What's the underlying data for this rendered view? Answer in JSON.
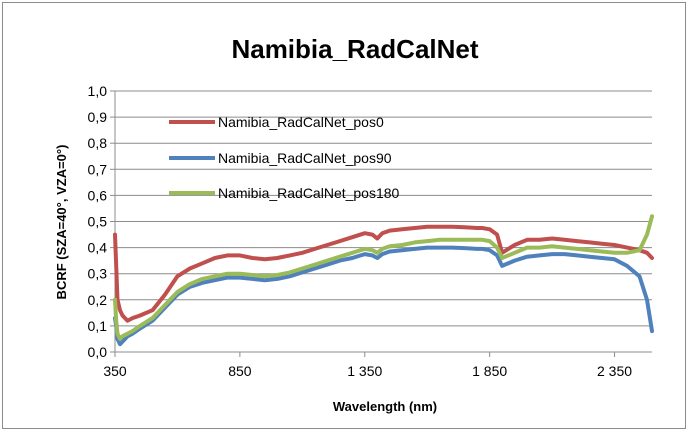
{
  "chart_data": {
    "type": "line",
    "title": "Namibia_RadCalNet",
    "xlabel": "Wavelength (nm)",
    "ylabel": "BCRF (SZA=40°, VZA=0°)",
    "xlim": [
      350,
      2500
    ],
    "ylim": [
      0,
      1.0
    ],
    "x_ticks": [
      350,
      850,
      1350,
      1850,
      2350
    ],
    "x_tick_labels": [
      "350",
      "850",
      "1 350",
      "1 850",
      "2 350"
    ],
    "y_ticks": [
      0,
      0.1,
      0.2,
      0.3,
      0.4,
      0.5,
      0.6,
      0.7,
      0.8,
      0.9,
      1.0
    ],
    "y_tick_labels": [
      "0,0",
      "0,1",
      "0,2",
      "0,3",
      "0,4",
      "0,5",
      "0,6",
      "0,7",
      "0,8",
      "0,9",
      "1,0"
    ],
    "grid": "horizontal",
    "legend_position": "top-left",
    "series": [
      {
        "name": "Namibia_RadCalNet_pos0",
        "color": "#c0504d",
        "x": [
          350,
          355,
          360,
          370,
          380,
          400,
          420,
          450,
          500,
          550,
          600,
          650,
          700,
          750,
          800,
          850,
          900,
          950,
          1000,
          1050,
          1100,
          1150,
          1200,
          1250,
          1300,
          1350,
          1380,
          1400,
          1420,
          1450,
          1500,
          1550,
          1600,
          1650,
          1700,
          1750,
          1800,
          1820,
          1850,
          1880,
          1900,
          1950,
          2000,
          2050,
          2100,
          2150,
          2200,
          2250,
          2300,
          2350,
          2400,
          2450,
          2480,
          2500
        ],
        "y": [
          0.45,
          0.33,
          0.2,
          0.16,
          0.14,
          0.12,
          0.13,
          0.14,
          0.16,
          0.22,
          0.29,
          0.32,
          0.34,
          0.36,
          0.37,
          0.37,
          0.36,
          0.355,
          0.36,
          0.37,
          0.38,
          0.395,
          0.41,
          0.425,
          0.44,
          0.455,
          0.45,
          0.435,
          0.455,
          0.465,
          0.47,
          0.475,
          0.48,
          0.48,
          0.48,
          0.478,
          0.475,
          0.475,
          0.47,
          0.45,
          0.38,
          0.41,
          0.43,
          0.43,
          0.435,
          0.43,
          0.425,
          0.42,
          0.415,
          0.41,
          0.4,
          0.39,
          0.38,
          0.36
        ]
      },
      {
        "name": "Namibia_RadCalNet_pos90",
        "color": "#4f81bd",
        "x": [
          350,
          355,
          360,
          370,
          380,
          400,
          420,
          450,
          500,
          550,
          600,
          650,
          700,
          750,
          800,
          850,
          900,
          950,
          1000,
          1050,
          1100,
          1150,
          1200,
          1250,
          1300,
          1350,
          1380,
          1400,
          1420,
          1450,
          1500,
          1550,
          1600,
          1650,
          1700,
          1750,
          1800,
          1820,
          1850,
          1880,
          1900,
          1950,
          2000,
          2050,
          2100,
          2150,
          2200,
          2250,
          2300,
          2350,
          2400,
          2450,
          2480,
          2500
        ],
        "y": [
          0.13,
          0.1,
          0.05,
          0.03,
          0.04,
          0.06,
          0.07,
          0.09,
          0.12,
          0.17,
          0.22,
          0.25,
          0.265,
          0.275,
          0.285,
          0.285,
          0.28,
          0.275,
          0.28,
          0.29,
          0.305,
          0.32,
          0.335,
          0.35,
          0.36,
          0.375,
          0.37,
          0.36,
          0.375,
          0.385,
          0.39,
          0.395,
          0.4,
          0.4,
          0.4,
          0.398,
          0.395,
          0.395,
          0.39,
          0.37,
          0.33,
          0.35,
          0.365,
          0.37,
          0.375,
          0.375,
          0.37,
          0.365,
          0.36,
          0.355,
          0.33,
          0.29,
          0.2,
          0.08
        ]
      },
      {
        "name": "Namibia_RadCalNet_pos180",
        "color": "#9bbb59",
        "x": [
          350,
          355,
          360,
          370,
          380,
          400,
          420,
          450,
          500,
          550,
          600,
          650,
          700,
          750,
          800,
          850,
          900,
          950,
          1000,
          1050,
          1100,
          1150,
          1200,
          1250,
          1300,
          1350,
          1380,
          1400,
          1420,
          1450,
          1500,
          1550,
          1600,
          1650,
          1700,
          1750,
          1800,
          1820,
          1850,
          1880,
          1900,
          1950,
          2000,
          2050,
          2100,
          2150,
          2200,
          2250,
          2300,
          2350,
          2400,
          2450,
          2480,
          2500
        ],
        "y": [
          0.2,
          0.12,
          0.07,
          0.05,
          0.06,
          0.07,
          0.08,
          0.1,
          0.13,
          0.18,
          0.23,
          0.26,
          0.28,
          0.29,
          0.3,
          0.3,
          0.295,
          0.29,
          0.295,
          0.305,
          0.32,
          0.335,
          0.35,
          0.365,
          0.38,
          0.395,
          0.39,
          0.38,
          0.395,
          0.405,
          0.41,
          0.42,
          0.425,
          0.43,
          0.43,
          0.43,
          0.43,
          0.43,
          0.425,
          0.4,
          0.36,
          0.38,
          0.4,
          0.4,
          0.405,
          0.4,
          0.395,
          0.39,
          0.385,
          0.38,
          0.38,
          0.39,
          0.45,
          0.52
        ]
      }
    ]
  }
}
